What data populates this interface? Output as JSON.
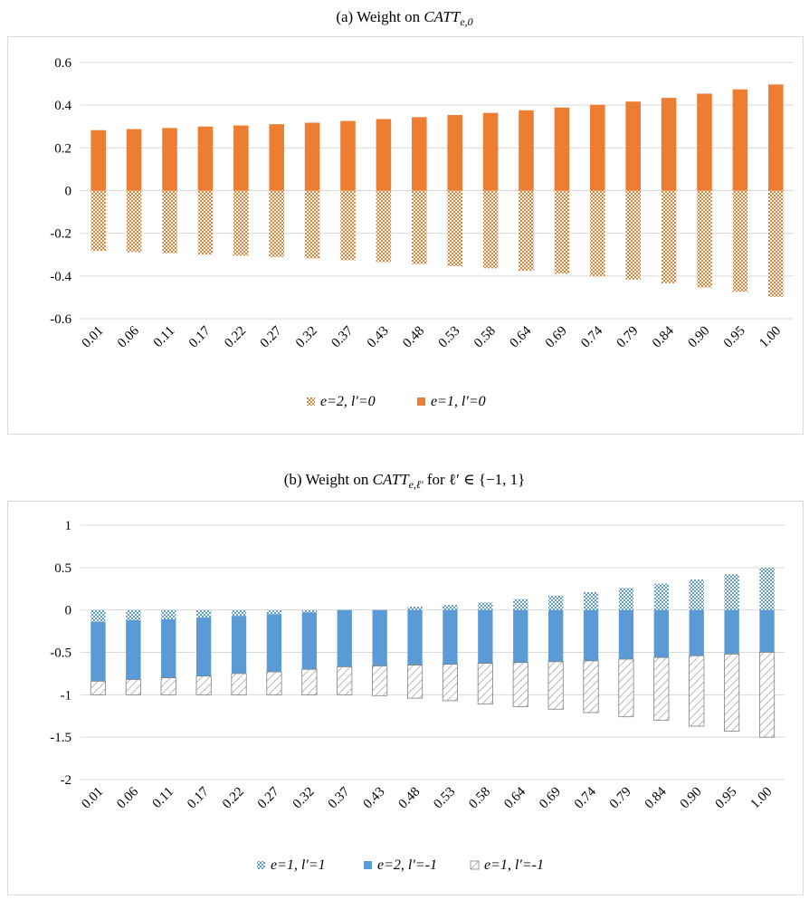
{
  "figures": [
    {
      "title_prefix": "(a) Weight on ",
      "title_math": "CATT",
      "title_sub": "e,0",
      "title_suffix": ""
    },
    {
      "title_prefix": "(b) Weight on ",
      "title_math": "CATT",
      "title_sub": "e,ℓ′",
      "title_suffix": " for ℓ′ ∈ {−1, 1}"
    }
  ],
  "chart_data": [
    {
      "type": "bar",
      "stacked": true,
      "categories": [
        "0.01",
        "0.06",
        "0.11",
        "0.17",
        "0.22",
        "0.27",
        "0.32",
        "0.37",
        "0.43",
        "0.48",
        "0.53",
        "0.58",
        "0.64",
        "0.69",
        "0.74",
        "0.79",
        "0.84",
        "0.90",
        "0.95",
        "1.00"
      ],
      "ylim": [
        -0.6,
        0.6
      ],
      "yticks": [
        0.6,
        0.4,
        0.2,
        0,
        -0.2,
        -0.4,
        -0.6
      ],
      "ytick_labels": [
        "0.6",
        "0.4",
        "0.2",
        "0",
        "-0.2",
        "-0.4",
        "-0.6"
      ],
      "grid": true,
      "legend_position": "bottom",
      "series": [
        {
          "name": "e=2, l′=0",
          "pattern": "checker",
          "color": "#ed7d31",
          "values": [
            -0.283,
            -0.288,
            -0.293,
            -0.3,
            -0.305,
            -0.311,
            -0.318,
            -0.326,
            -0.335,
            -0.344,
            -0.354,
            -0.364,
            -0.376,
            -0.389,
            -0.402,
            -0.417,
            -0.434,
            -0.454,
            -0.474,
            -0.497
          ]
        },
        {
          "name": "e=1, l′=0",
          "pattern": "solid",
          "color": "#ed7d31",
          "values": [
            0.283,
            0.288,
            0.293,
            0.3,
            0.305,
            0.311,
            0.318,
            0.326,
            0.335,
            0.344,
            0.354,
            0.364,
            0.376,
            0.389,
            0.402,
            0.417,
            0.434,
            0.454,
            0.474,
            0.497
          ]
        }
      ]
    },
    {
      "type": "bar",
      "stacked": true,
      "categories": [
        "0.01",
        "0.06",
        "0.11",
        "0.17",
        "0.22",
        "0.27",
        "0.32",
        "0.37",
        "0.43",
        "0.48",
        "0.53",
        "0.58",
        "0.64",
        "0.69",
        "0.74",
        "0.79",
        "0.84",
        "0.90",
        "0.95",
        "1.00"
      ],
      "ylim": [
        -2,
        1
      ],
      "yticks": [
        1,
        0.5,
        0,
        -0.5,
        -1,
        -1.5,
        -2
      ],
      "ytick_labels": [
        "1",
        "0.5",
        "0",
        "-0.5",
        "-1",
        "-1.5",
        "-2"
      ],
      "grid": true,
      "legend_position": "bottom",
      "series": [
        {
          "name": "e=1, l′=1",
          "pattern": "checker",
          "color": "#5b9bd5",
          "values": [
            -0.14,
            -0.12,
            -0.11,
            -0.09,
            -0.07,
            -0.05,
            -0.03,
            0.0,
            0.0,
            0.04,
            0.06,
            0.09,
            0.13,
            0.17,
            0.21,
            0.26,
            0.31,
            0.36,
            0.42,
            0.5
          ]
        },
        {
          "name": "e=2, l′=-1",
          "pattern": "solid",
          "color": "#5b9bd5",
          "values": [
            -0.7,
            -0.7,
            -0.69,
            -0.69,
            -0.68,
            -0.68,
            -0.67,
            -0.67,
            -0.66,
            -0.65,
            -0.64,
            -0.63,
            -0.62,
            -0.61,
            -0.6,
            -0.58,
            -0.56,
            -0.54,
            -0.52,
            -0.5
          ]
        },
        {
          "name": "e=1, l′=-1",
          "pattern": "hatch",
          "color": "#a6a6a6",
          "values": [
            -0.16,
            -0.18,
            -0.2,
            -0.22,
            -0.25,
            -0.27,
            -0.3,
            -0.33,
            -0.35,
            -0.39,
            -0.43,
            -0.48,
            -0.52,
            -0.56,
            -0.61,
            -0.68,
            -0.74,
            -0.83,
            -0.91,
            -1.0
          ]
        }
      ]
    }
  ]
}
